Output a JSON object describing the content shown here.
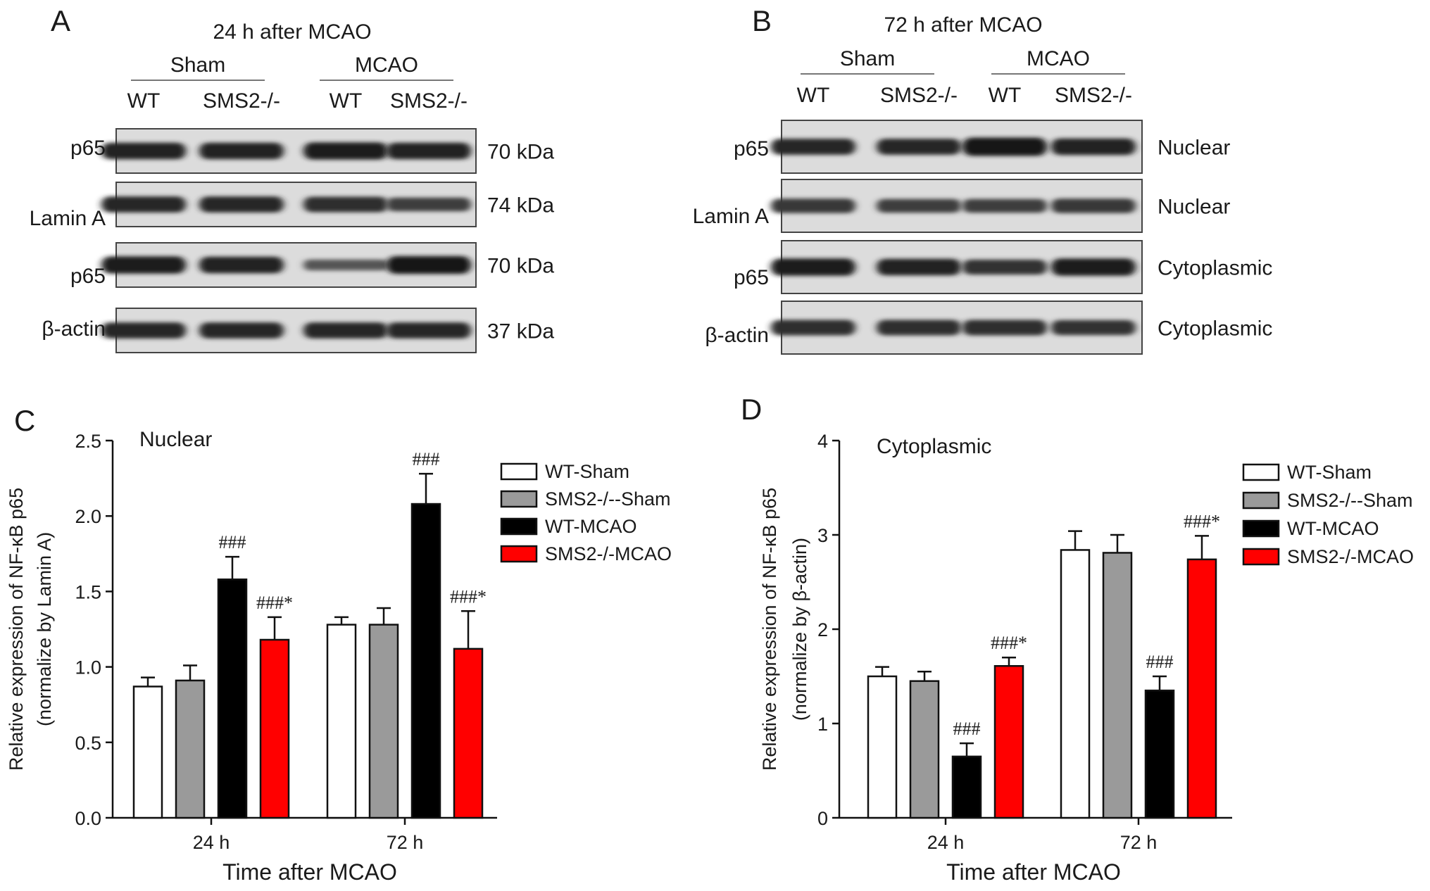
{
  "figure": {
    "panel_labels": [
      "A",
      "B",
      "C",
      "D"
    ],
    "blot_a": {
      "title": "24 h after MCAO",
      "groups": [
        "Sham",
        "MCAO"
      ],
      "lanes": [
        "WT",
        "SMS2-/-",
        "WT",
        "SMS2-/-"
      ],
      "rows": [
        {
          "label": "p65",
          "right": "70 kDa",
          "bands": [
            0.85,
            0.85,
            0.9,
            0.85
          ]
        },
        {
          "label": "Lamin A",
          "right": "74 kDa",
          "bands": [
            0.8,
            0.8,
            0.75,
            0.6
          ]
        },
        {
          "label": "p65",
          "right": "70 kDa",
          "bands": [
            0.9,
            0.85,
            0.35,
            0.95
          ]
        },
        {
          "label": "β-actin",
          "right": "37 kDa",
          "bands": [
            0.8,
            0.8,
            0.8,
            0.8
          ]
        }
      ]
    },
    "blot_b": {
      "title": "72 h after MCAO",
      "groups": [
        "Sham",
        "MCAO"
      ],
      "lanes": [
        "WT",
        "SMS2-/-",
        "WT",
        "SMS2-/-"
      ],
      "rows": [
        {
          "label": "p65",
          "right": "Nuclear",
          "bands": [
            0.8,
            0.8,
            1.0,
            0.85
          ]
        },
        {
          "label": "Lamin A",
          "right": "Nuclear",
          "bands": [
            0.65,
            0.6,
            0.6,
            0.65
          ]
        },
        {
          "label": "p65",
          "right": "Cytoplasmic",
          "bands": [
            0.9,
            0.85,
            0.7,
            0.9
          ]
        },
        {
          "label": "β-actin",
          "right": "Cytoplasmic",
          "bands": [
            0.75,
            0.75,
            0.75,
            0.7
          ]
        }
      ]
    }
  },
  "chart_data": [
    {
      "type": "bar",
      "panel": "C",
      "title": "Nuclear",
      "xlabel": "Time after MCAO",
      "ylabel": "Relative expression of NF-κB p65",
      "ylabel2": "(normalize by Lamin A)",
      "ylim": [
        0,
        2.5
      ],
      "yticks": [
        "0.0",
        "0.5",
        "1.0",
        "1.5",
        "2.0",
        "2.5"
      ],
      "categories": [
        "24 h",
        "72 h"
      ],
      "legend_position": "top-right",
      "series": [
        {
          "name": "WT-Sham",
          "color": "#ffffff",
          "values": [
            0.87,
            1.28
          ],
          "errors": [
            0.06,
            0.05
          ],
          "annotations": [
            "",
            ""
          ]
        },
        {
          "name": "SMS2-/--Sham",
          "color": "#9a9a9a",
          "values": [
            0.91,
            1.28
          ],
          "errors": [
            0.1,
            0.11
          ],
          "annotations": [
            "",
            ""
          ]
        },
        {
          "name": "WT-MCAO",
          "color": "#000000",
          "values": [
            1.58,
            2.08
          ],
          "errors": [
            0.15,
            0.2
          ],
          "annotations": [
            "###",
            "###"
          ]
        },
        {
          "name": "SMS2-/-MCAO",
          "color": "#ff0000",
          "values": [
            1.18,
            1.12
          ],
          "errors": [
            0.15,
            0.25
          ],
          "annotations": [
            "###*",
            "###*"
          ]
        }
      ]
    },
    {
      "type": "bar",
      "panel": "D",
      "title": "Cytoplasmic",
      "xlabel": "Time after MCAO",
      "ylabel": "Relative expression of NF-κB p65",
      "ylabel2": "(normalize by β-actin)",
      "ylim": [
        0,
        4
      ],
      "yticks": [
        "0",
        "1",
        "2",
        "3",
        "4"
      ],
      "categories": [
        "24 h",
        "72 h"
      ],
      "legend_position": "top-right",
      "series": [
        {
          "name": "WT-Sham",
          "color": "#ffffff",
          "values": [
            1.5,
            2.84
          ],
          "errors": [
            0.1,
            0.2
          ],
          "annotations": [
            "",
            ""
          ]
        },
        {
          "name": "SMS2-/--Sham",
          "color": "#9a9a9a",
          "values": [
            1.45,
            2.81
          ],
          "errors": [
            0.1,
            0.19
          ],
          "annotations": [
            "",
            ""
          ]
        },
        {
          "name": "WT-MCAO",
          "color": "#000000",
          "values": [
            0.65,
            1.35
          ],
          "errors": [
            0.14,
            0.15
          ],
          "annotations": [
            "###",
            "###"
          ]
        },
        {
          "name": "SMS2-/-MCAO",
          "color": "#ff0000",
          "values": [
            1.61,
            2.74
          ],
          "errors": [
            0.09,
            0.25
          ],
          "annotations": [
            "###*",
            "###*"
          ]
        }
      ]
    }
  ]
}
